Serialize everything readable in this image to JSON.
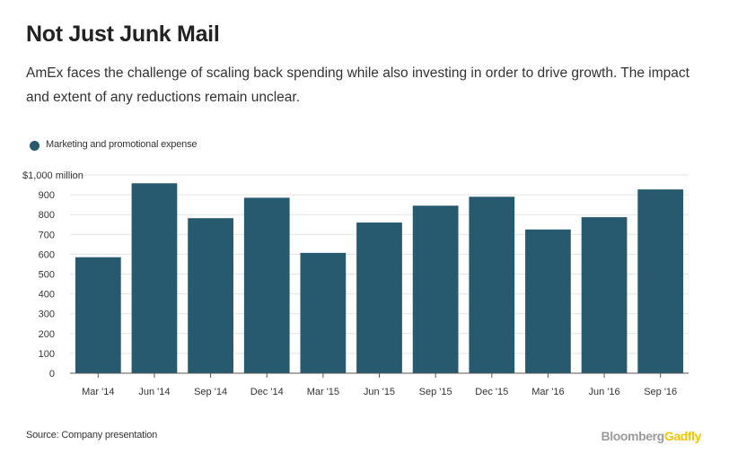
{
  "header": {
    "title": "Not Just Junk Mail",
    "subtitle": "AmEx faces the challenge of scaling back spending while also investing in order to drive growth. The impact and extent of any reductions remain unclear."
  },
  "legend": {
    "label": "Marketing and promotional expense",
    "color": "#275a6e"
  },
  "footer": {
    "source": "Source: Company presentation",
    "brand_part1": "Bloomberg",
    "brand_part2": "Gadfly",
    "brand_part1_color": "#9a9a9a",
    "brand_part2_color": "#f5c400"
  },
  "chart_data": {
    "type": "bar",
    "categories": [
      "Mar '14",
      "Jun '14",
      "Sep '14",
      "Dec '14",
      "Mar '15",
      "Jun '15",
      "Sep '15",
      "Dec '15",
      "Mar '16",
      "Jun '16",
      "Sep '16"
    ],
    "series": [
      {
        "name": "Marketing and promotional expense",
        "values": [
          585,
          958,
          782,
          885,
          607,
          760,
          845,
          890,
          725,
          787,
          927
        ],
        "color": "#275a6e"
      }
    ],
    "ylim": [
      0,
      1000
    ],
    "yticks": [
      0,
      100,
      200,
      300,
      400,
      500,
      600,
      700,
      800,
      900,
      1000
    ],
    "ytick_labels": [
      "0",
      "100",
      "200",
      "300",
      "400",
      "500",
      "600",
      "700",
      "800",
      "900",
      "$1,000 million"
    ],
    "grid": true,
    "legend_position": "top-left"
  }
}
